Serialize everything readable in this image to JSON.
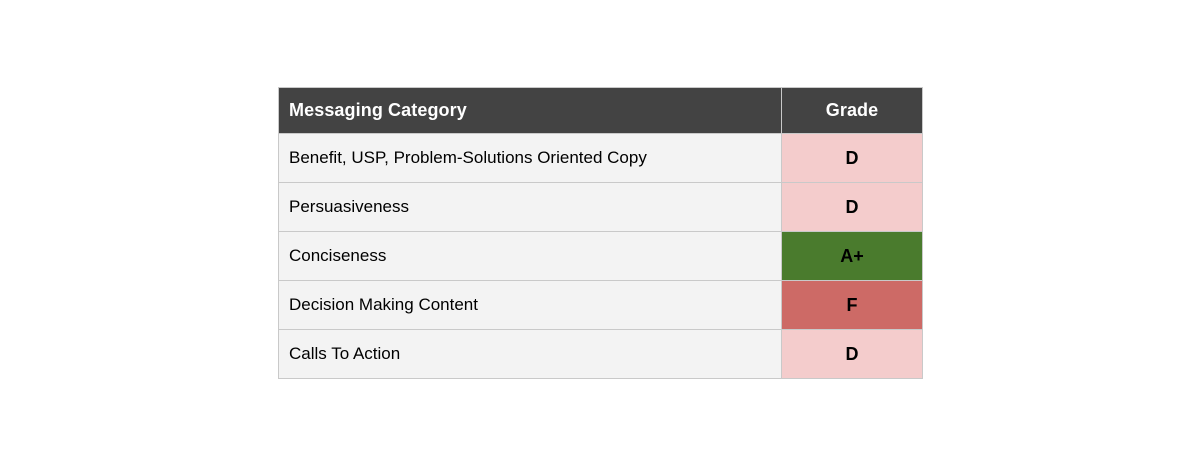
{
  "table": {
    "header": {
      "category_label": "Messaging Category",
      "grade_label": "Grade"
    },
    "rows": [
      {
        "category": "Benefit, USP, Problem-Solutions Oriented Copy",
        "grade": "D",
        "grade_bg": "#f4cccc"
      },
      {
        "category": "Persuasiveness",
        "grade": "D",
        "grade_bg": "#f4cccc"
      },
      {
        "category": "Conciseness",
        "grade": "A+",
        "grade_bg": "#4a7b2d"
      },
      {
        "category": "Decision Making Content",
        "grade": "F",
        "grade_bg": "#cd6a66"
      },
      {
        "category": "Calls To Action",
        "grade": "D",
        "grade_bg": "#f4cccc"
      }
    ],
    "colors": {
      "header_bg": "#434343",
      "header_text": "#ffffff",
      "row_bg": "#f3f3f3",
      "body_text": "#000000",
      "grade_text": "#000000",
      "border": "#c9c9c9",
      "grade_pink": "#f4cccc",
      "grade_green": "#4a7b2d",
      "grade_red": "#cd6a66"
    }
  }
}
